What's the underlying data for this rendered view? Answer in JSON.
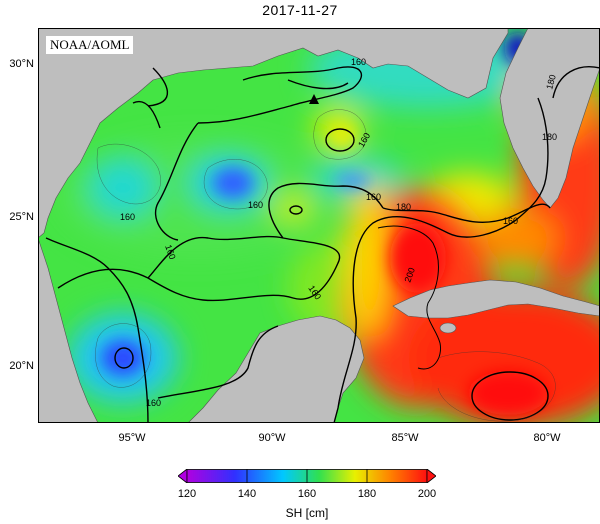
{
  "title": "2017-11-27",
  "source_label": "NOAA/AOML",
  "lat_labels": [
    "30°N",
    "25°N",
    "20°N"
  ],
  "lon_labels": [
    "95°W",
    "90°W",
    "85°W",
    "80°W"
  ],
  "contour_labels": [
    "160",
    "160",
    "160",
    "160",
    "160",
    "160",
    "160",
    "160",
    "160",
    "180",
    "180",
    "180",
    "200"
  ],
  "colorbar": {
    "ticks": [
      "120",
      "140",
      "160",
      "180",
      "200"
    ],
    "title": "SH [cm]",
    "colors": [
      "#b000e0",
      "#2020ff",
      "#00c8ff",
      "#30e050",
      "#e8f000",
      "#ff8000",
      "#ff1010"
    ]
  },
  "colors": {
    "land": "#bebebe",
    "low": "#2a50ff",
    "mid": "#40e040",
    "high": "#ff2020"
  },
  "marker": "triangle"
}
